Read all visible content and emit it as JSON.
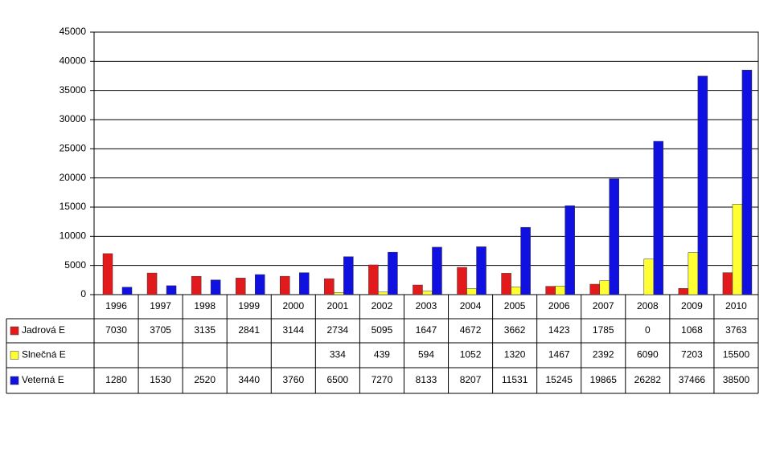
{
  "chart_data": {
    "type": "bar",
    "categories": [
      "1996",
      "1997",
      "1998",
      "1999",
      "2000",
      "2001",
      "2002",
      "2003",
      "2004",
      "2005",
      "2006",
      "2007",
      "2008",
      "2009",
      "2010"
    ],
    "series": [
      {
        "name": "Jadrová E",
        "color": "#e31a1c",
        "values": [
          7030,
          3705,
          3135,
          2841,
          3144,
          2734,
          5095,
          1647,
          4672,
          3662,
          1423,
          1785,
          0,
          1068,
          3763
        ]
      },
      {
        "name": "Slnečná E",
        "color": "#ffff33",
        "values": [
          null,
          null,
          null,
          null,
          null,
          334,
          439,
          594,
          1052,
          1320,
          1467,
          2392,
          6090,
          7203,
          15500
        ]
      },
      {
        "name": "Veterná E",
        "color": "#1010e0",
        "values": [
          1280,
          1530,
          2520,
          3440,
          3760,
          6500,
          7270,
          8133,
          8207,
          11531,
          15245,
          19865,
          26282,
          37466,
          38500
        ]
      }
    ],
    "ylim": [
      0,
      45000
    ],
    "yticks": [
      0,
      5000,
      10000,
      15000,
      20000,
      25000,
      30000,
      35000,
      40000,
      45000
    ],
    "grid": true
  }
}
